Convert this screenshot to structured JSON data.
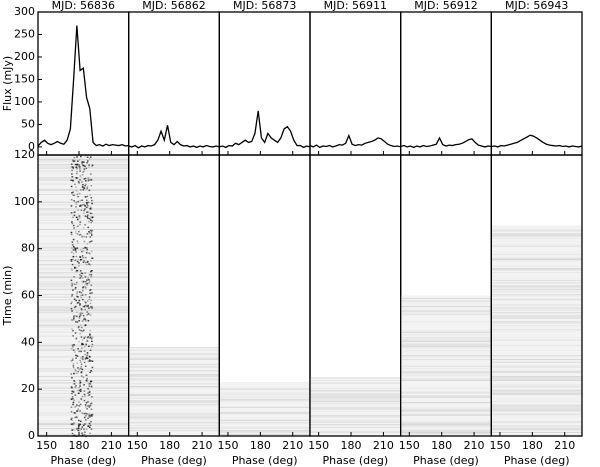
{
  "chart_data": [
    {
      "type": "line",
      "title": "MJD: 56836",
      "color": "#000000",
      "ylabel": "Flux (mJy)",
      "xlabel": "Phase (deg)",
      "time_label": "Time (min)",
      "x": [
        142,
        145,
        148,
        151,
        154,
        157,
        160,
        163,
        166,
        169,
        172,
        175,
        178,
        181,
        184,
        187,
        190,
        193,
        196,
        199,
        202,
        205,
        208,
        211,
        214,
        217,
        220,
        223,
        226
      ],
      "values": [
        2,
        10,
        15,
        8,
        5,
        8,
        12,
        8,
        6,
        15,
        40,
        150,
        270,
        170,
        175,
        110,
        85,
        10,
        3,
        5,
        2,
        6,
        3,
        5,
        4,
        3,
        5,
        2,
        3
      ],
      "xlim": [
        142,
        226
      ],
      "xticks": [
        150,
        180,
        210
      ],
      "ylim": [
        -18,
        300
      ],
      "yticks": [
        0,
        50,
        100,
        150,
        200,
        250,
        300
      ],
      "time_ylim": [
        0,
        120
      ],
      "time_yticks": [
        0,
        20,
        40,
        60,
        80,
        100,
        120
      ],
      "duration": 120
    },
    {
      "type": "line",
      "title": "MJD: 56862",
      "color": "#000000",
      "xlabel": "Phase (deg)",
      "x": [
        142,
        145,
        148,
        151,
        154,
        157,
        160,
        163,
        166,
        169,
        172,
        175,
        178,
        181,
        184,
        187,
        190,
        193,
        196,
        199,
        202,
        205,
        208,
        211,
        214,
        217,
        220,
        223,
        226
      ],
      "values": [
        2,
        0,
        3,
        -2,
        2,
        0,
        3,
        2,
        5,
        15,
        35,
        15,
        48,
        10,
        5,
        12,
        5,
        2,
        3,
        0,
        2,
        -1,
        2,
        0,
        3,
        1,
        0,
        2,
        0
      ],
      "xlim": [
        142,
        226
      ],
      "xticks": [
        150,
        180,
        210
      ],
      "ylim": [
        -18,
        300
      ],
      "time_ylim": [
        0,
        120
      ],
      "duration": 38
    },
    {
      "type": "line",
      "title": "MJD: 56873",
      "color": "#000000",
      "xlabel": "Phase (deg)",
      "x": [
        142,
        145,
        148,
        151,
        154,
        157,
        160,
        163,
        166,
        169,
        172,
        175,
        178,
        181,
        184,
        187,
        190,
        193,
        196,
        199,
        202,
        205,
        208,
        211,
        214,
        217,
        220,
        223,
        226
      ],
      "values": [
        0,
        2,
        -1,
        3,
        2,
        8,
        5,
        10,
        15,
        10,
        12,
        30,
        80,
        20,
        10,
        30,
        20,
        15,
        10,
        20,
        40,
        45,
        35,
        15,
        3,
        3,
        -1,
        2,
        0
      ],
      "xlim": [
        142,
        226
      ],
      "xticks": [
        150,
        180,
        210
      ],
      "ylim": [
        -18,
        300
      ],
      "time_ylim": [
        0,
        120
      ],
      "duration": 23
    },
    {
      "type": "line",
      "title": "MJD: 56911",
      "color": "#000000",
      "xlabel": "Phase (deg)",
      "x": [
        142,
        145,
        148,
        151,
        154,
        157,
        160,
        163,
        166,
        169,
        172,
        175,
        178,
        181,
        184,
        187,
        190,
        193,
        196,
        199,
        202,
        205,
        208,
        211,
        214,
        217,
        220,
        223,
        226
      ],
      "values": [
        3,
        0,
        4,
        -1,
        2,
        1,
        3,
        0,
        2,
        5,
        4,
        8,
        25,
        6,
        3,
        5,
        4,
        8,
        10,
        12,
        15,
        20,
        18,
        12,
        6,
        3,
        1,
        2,
        0
      ],
      "xlim": [
        142,
        226
      ],
      "xticks": [
        150,
        180,
        210
      ],
      "ylim": [
        -18,
        300
      ],
      "time_ylim": [
        0,
        120
      ],
      "duration": 25
    },
    {
      "type": "line",
      "title": "MJD: 56912",
      "color": "#000000",
      "xlabel": "Phase (deg)",
      "x": [
        142,
        145,
        148,
        151,
        154,
        157,
        160,
        163,
        166,
        169,
        172,
        175,
        178,
        181,
        184,
        187,
        190,
        193,
        196,
        199,
        202,
        205,
        208,
        211,
        214,
        217,
        220,
        223,
        226
      ],
      "values": [
        1,
        3,
        0,
        2,
        -1,
        2,
        0,
        3,
        1,
        2,
        4,
        6,
        20,
        5,
        2,
        4,
        3,
        5,
        6,
        8,
        12,
        16,
        18,
        10,
        4,
        2,
        0,
        2,
        1
      ],
      "xlim": [
        142,
        226
      ],
      "xticks": [
        150,
        180,
        210
      ],
      "ylim": [
        -18,
        300
      ],
      "time_ylim": [
        0,
        120
      ],
      "duration": 60
    },
    {
      "type": "line",
      "title": "MJD: 56943",
      "color": "#000000",
      "xlabel": "Phase (deg)",
      "x": [
        142,
        145,
        148,
        151,
        154,
        157,
        160,
        163,
        166,
        169,
        172,
        175,
        178,
        181,
        184,
        187,
        190,
        193,
        196,
        199,
        202,
        205,
        208,
        211,
        214,
        217,
        220,
        223,
        226
      ],
      "values": [
        1,
        2,
        0,
        3,
        2,
        4,
        6,
        8,
        10,
        14,
        18,
        22,
        26,
        24,
        20,
        15,
        10,
        6,
        4,
        3,
        2,
        3,
        1,
        2,
        0,
        2,
        1,
        0,
        2
      ],
      "xlim": [
        142,
        226
      ],
      "xticks": [
        150,
        180,
        210
      ],
      "ylim": [
        -18,
        300
      ],
      "time_ylim": [
        0,
        120
      ],
      "duration": 90
    }
  ]
}
